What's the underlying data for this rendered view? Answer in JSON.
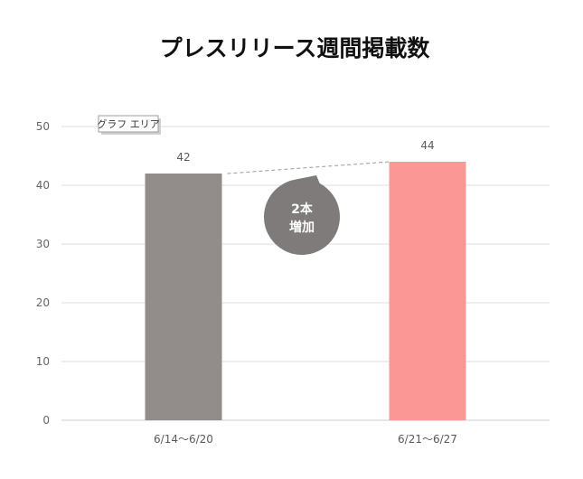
{
  "chart_data": {
    "type": "bar",
    "title": "プレスリリース週間掲載数",
    "categories": [
      "6/14〜6/20",
      "6/21〜6/27"
    ],
    "values": [
      42,
      44
    ],
    "data_labels": [
      "42",
      "44"
    ],
    "ylim": [
      0,
      50
    ],
    "yticks": [
      0,
      10,
      20,
      30,
      40,
      50
    ],
    "ytick_labels": [
      "0",
      "10",
      "20",
      "30",
      "40",
      "50"
    ],
    "grid": true,
    "colors": [
      "#928d8b",
      "#fb9895"
    ],
    "callout": {
      "line1": "2本",
      "line2": "増加",
      "color": "#7f7b7a"
    },
    "tooltip": "グラフ エリア"
  }
}
